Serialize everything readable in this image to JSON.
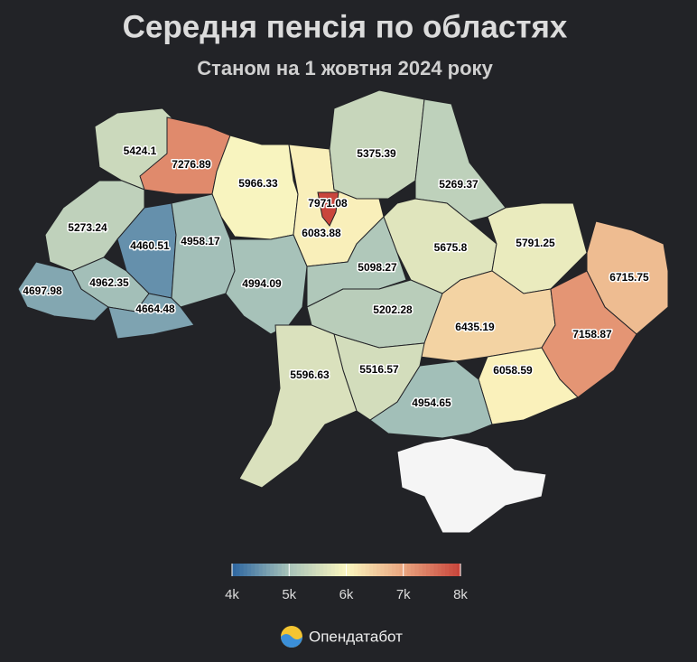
{
  "chart_data": {
    "type": "choropleth",
    "title": "Середня пенсія по областях",
    "subtitle": "Станом на 1 жовтня 2024 року",
    "values": [
      5424.1,
      7276.89,
      5966.33,
      6083.88,
      5375.39,
      5269.37,
      5273.24,
      4460.51,
      4958.17,
      4697.98,
      4962.35,
      4664.48,
      4994.09,
      5098.27,
      5675.8,
      5791.25,
      6715.75,
      5202.28,
      6435.19,
      7158.87,
      6058.59,
      4954.65,
      5516.57,
      5596.63,
      7971.08
    ],
    "clim": [
      4000,
      8000
    ],
    "colorscale": [
      "#2c65a0",
      "#a8c3b9",
      "#fbf6bf",
      "#e9a57f",
      "#c8433a"
    ],
    "cticks": [
      {
        "value": 4000,
        "label": "4k"
      },
      {
        "value": 5000,
        "label": "5k"
      },
      {
        "value": 6000,
        "label": "6k"
      },
      {
        "value": 7000,
        "label": "7k"
      },
      {
        "value": 8000,
        "label": "8k"
      }
    ],
    "source": "Опендатабот"
  }
}
